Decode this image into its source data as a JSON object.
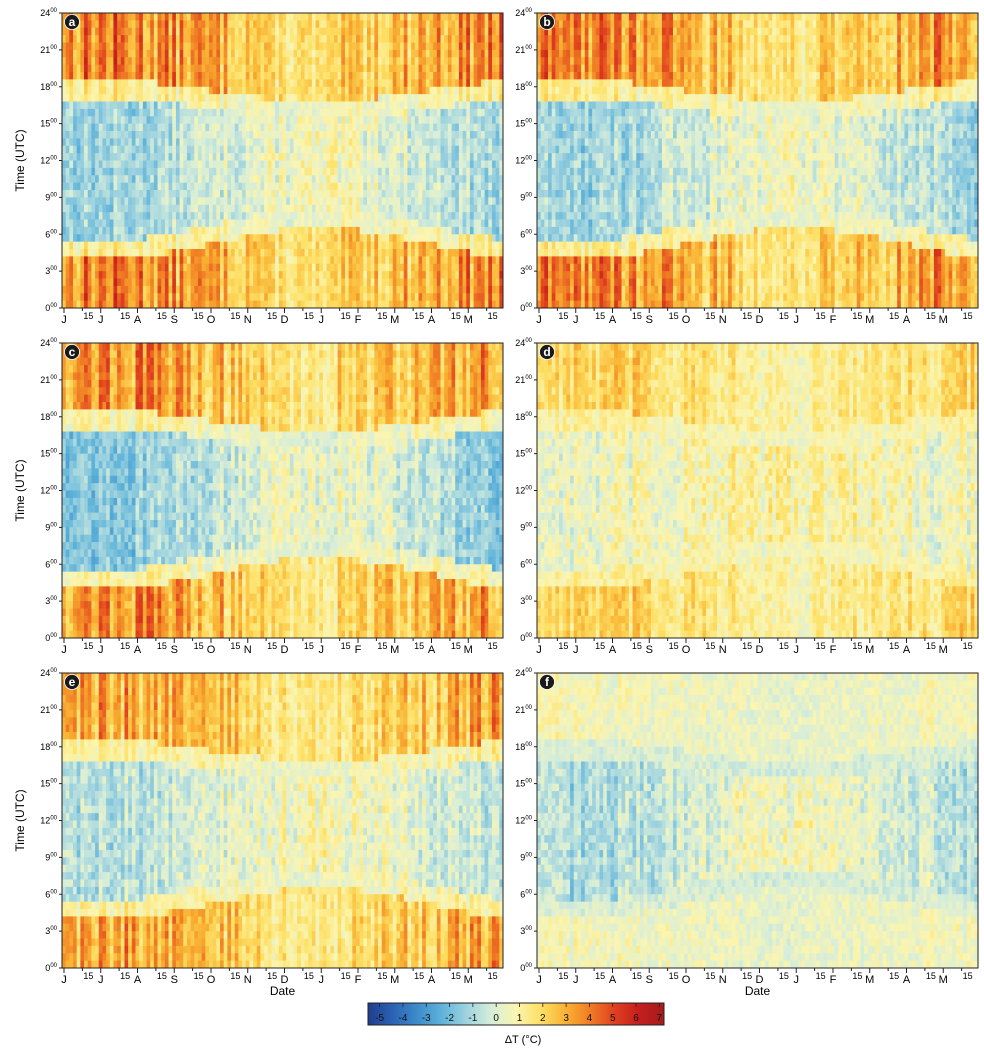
{
  "figure": {
    "colorbar_label": "ΔT (°C)",
    "colorbar_ticks": [
      "-5",
      "-4",
      "-3",
      "-2",
      "-1",
      "0",
      "1",
      "2",
      "3",
      "4",
      "5",
      "6",
      "7"
    ],
    "colorbar_range": [
      -5.5,
      7.2
    ],
    "colorbar_colors": [
      "#1f3e8c",
      "#2c62b4",
      "#3d8ccb",
      "#5fb3d9",
      "#9fd3df",
      "#d7eed9",
      "#fbf5b0",
      "#fde065",
      "#f9b233",
      "#f07d25",
      "#e0401f",
      "#c41e1e",
      "#a51c1c"
    ]
  },
  "chart_data": [
    {
      "type": "heatmap",
      "panel": "a",
      "title": "",
      "ylabel": "Time (UTC)",
      "xlabel": "",
      "x_tick_labels": [
        "J",
        "15",
        "J",
        "15",
        "A",
        "15",
        "S",
        "15",
        "O",
        "15",
        "N",
        "15",
        "D",
        "15",
        "J",
        "15",
        "F",
        "15",
        "M",
        "15",
        "A",
        "15",
        "M",
        "15"
      ],
      "y_tick_labels": [
        "0",
        "3",
        "6",
        "9",
        "12",
        "15",
        "18",
        "21",
        "24"
      ],
      "y_tick_sup": "00",
      "ylim": [
        0,
        24
      ],
      "clim": [
        -5.5,
        7.2
      ],
      "night_warming_C": 4.8,
      "day_cooling_C": -1.0
    },
    {
      "type": "heatmap",
      "panel": "b",
      "title": "",
      "ylabel": "",
      "xlabel": "",
      "x_tick_labels": [
        "J",
        "15",
        "J",
        "15",
        "A",
        "15",
        "S",
        "15",
        "O",
        "15",
        "N",
        "15",
        "D",
        "15",
        "J",
        "15",
        "F",
        "15",
        "M",
        "15",
        "A",
        "15",
        "M",
        "15"
      ],
      "y_tick_labels": [
        "0",
        "3",
        "6",
        "9",
        "12",
        "15",
        "18",
        "21",
        "24"
      ],
      "y_tick_sup": "00",
      "ylim": [
        0,
        24
      ],
      "clim": [
        -5.5,
        7.2
      ],
      "night_warming_C": 4.8,
      "day_cooling_C": -1.0
    },
    {
      "type": "heatmap",
      "panel": "c",
      "title": "",
      "ylabel": "Time (UTC)",
      "xlabel": "",
      "x_tick_labels": [
        "J",
        "15",
        "J",
        "15",
        "A",
        "15",
        "S",
        "15",
        "O",
        "15",
        "N",
        "15",
        "D",
        "15",
        "J",
        "15",
        "F",
        "15",
        "M",
        "15",
        "A",
        "15",
        "M",
        "15"
      ],
      "y_tick_labels": [
        "0",
        "3",
        "6",
        "9",
        "12",
        "15",
        "18",
        "21",
        "24"
      ],
      "y_tick_sup": "00",
      "ylim": [
        0,
        24
      ],
      "clim": [
        -5.5,
        7.2
      ],
      "night_warming_C": 4.5,
      "day_cooling_C": -1.3
    },
    {
      "type": "heatmap",
      "panel": "d",
      "title": "",
      "ylabel": "",
      "xlabel": "",
      "x_tick_labels": [
        "J",
        "15",
        "J",
        "15",
        "A",
        "15",
        "S",
        "15",
        "O",
        "15",
        "N",
        "15",
        "D",
        "15",
        "J",
        "15",
        "F",
        "15",
        "M",
        "15",
        "A",
        "15",
        "M",
        "15"
      ],
      "y_tick_labels": [
        "0",
        "3",
        "6",
        "9",
        "12",
        "15",
        "18",
        "21",
        "24"
      ],
      "y_tick_sup": "00",
      "ylim": [
        0,
        24
      ],
      "clim": [
        -5.5,
        7.2
      ],
      "night_warming_C": 2.6,
      "day_cooling_C": 0.3
    },
    {
      "type": "heatmap",
      "panel": "e",
      "title": "",
      "ylabel": "Time (UTC)",
      "xlabel": "Date",
      "x_tick_labels": [
        "J",
        "15",
        "J",
        "15",
        "A",
        "15",
        "S",
        "15",
        "O",
        "15",
        "N",
        "15",
        "D",
        "15",
        "J",
        "15",
        "F",
        "15",
        "M",
        "15",
        "A",
        "15",
        "M",
        "15"
      ],
      "y_tick_labels": [
        "0",
        "3",
        "6",
        "9",
        "12",
        "15",
        "18",
        "21",
        "24"
      ],
      "y_tick_sup": "00",
      "ylim": [
        0,
        24
      ],
      "clim": [
        -5.5,
        7.2
      ],
      "night_warming_C": 4.0,
      "day_cooling_C": -0.6
    },
    {
      "type": "heatmap",
      "panel": "f",
      "title": "",
      "ylabel": "",
      "xlabel": "Date",
      "x_tick_labels": [
        "J",
        "15",
        "J",
        "15",
        "A",
        "15",
        "S",
        "15",
        "O",
        "15",
        "N",
        "15",
        "D",
        "15",
        "J",
        "15",
        "F",
        "15",
        "M",
        "15",
        "A",
        "15",
        "M",
        "15"
      ],
      "y_tick_labels": [
        "0",
        "3",
        "6",
        "9",
        "12",
        "15",
        "18",
        "21",
        "24"
      ],
      "y_tick_sup": "00",
      "ylim": [
        0,
        24
      ],
      "clim": [
        -5.5,
        7.2
      ],
      "night_warming_C": 0.8,
      "day_cooling_C": -0.8
    }
  ]
}
